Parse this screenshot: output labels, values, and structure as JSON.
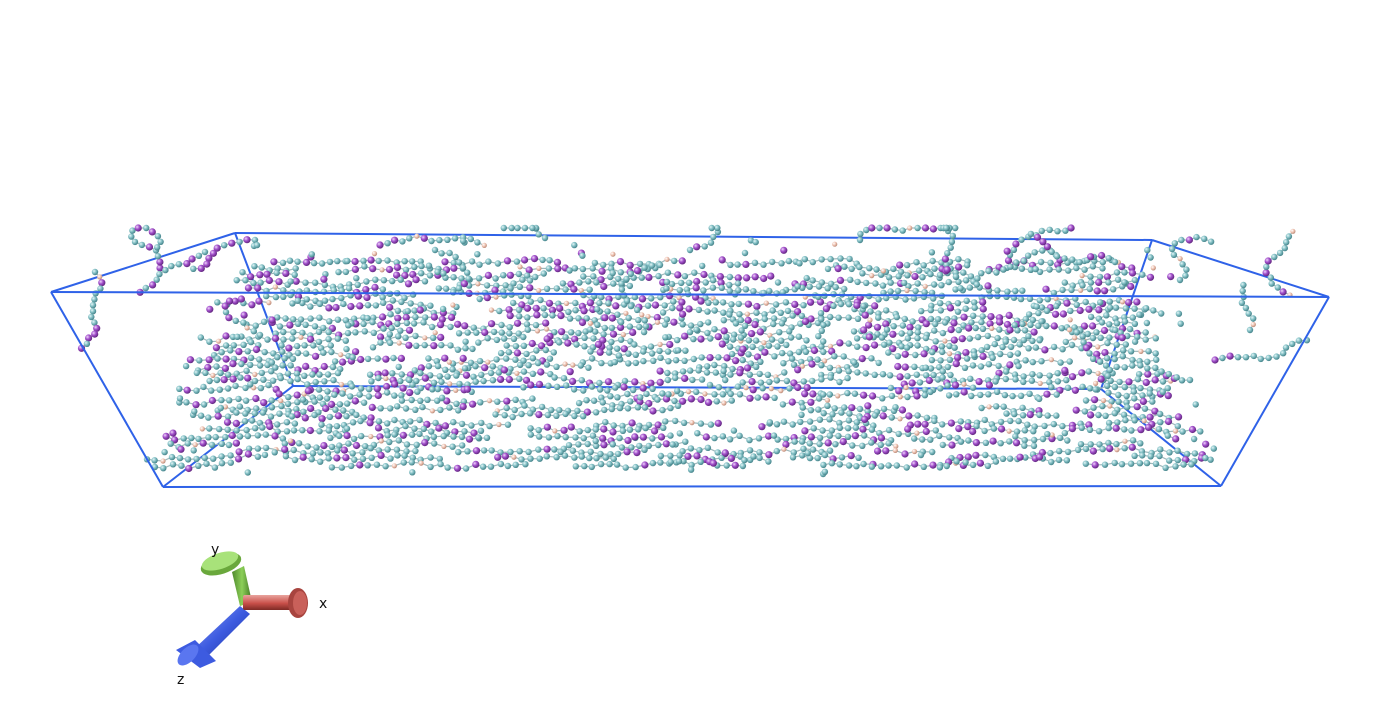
{
  "scene": {
    "background_color": "#ffffff",
    "cell_color": "#2f62e8",
    "atom_colors": {
      "carbon": "#7fb9bf",
      "oxygen": "#9a48c2",
      "hydrogen": "#e8b7a6"
    }
  },
  "axes": {
    "x": {
      "label": "x",
      "color": "#c9504a",
      "icon": "arrow-x-icon"
    },
    "y": {
      "label": "y",
      "color": "#7bc24a",
      "icon": "arrow-y-icon"
    },
    "z": {
      "label": "z",
      "color": "#3d5be0",
      "icon": "arrow-z-icon"
    }
  }
}
